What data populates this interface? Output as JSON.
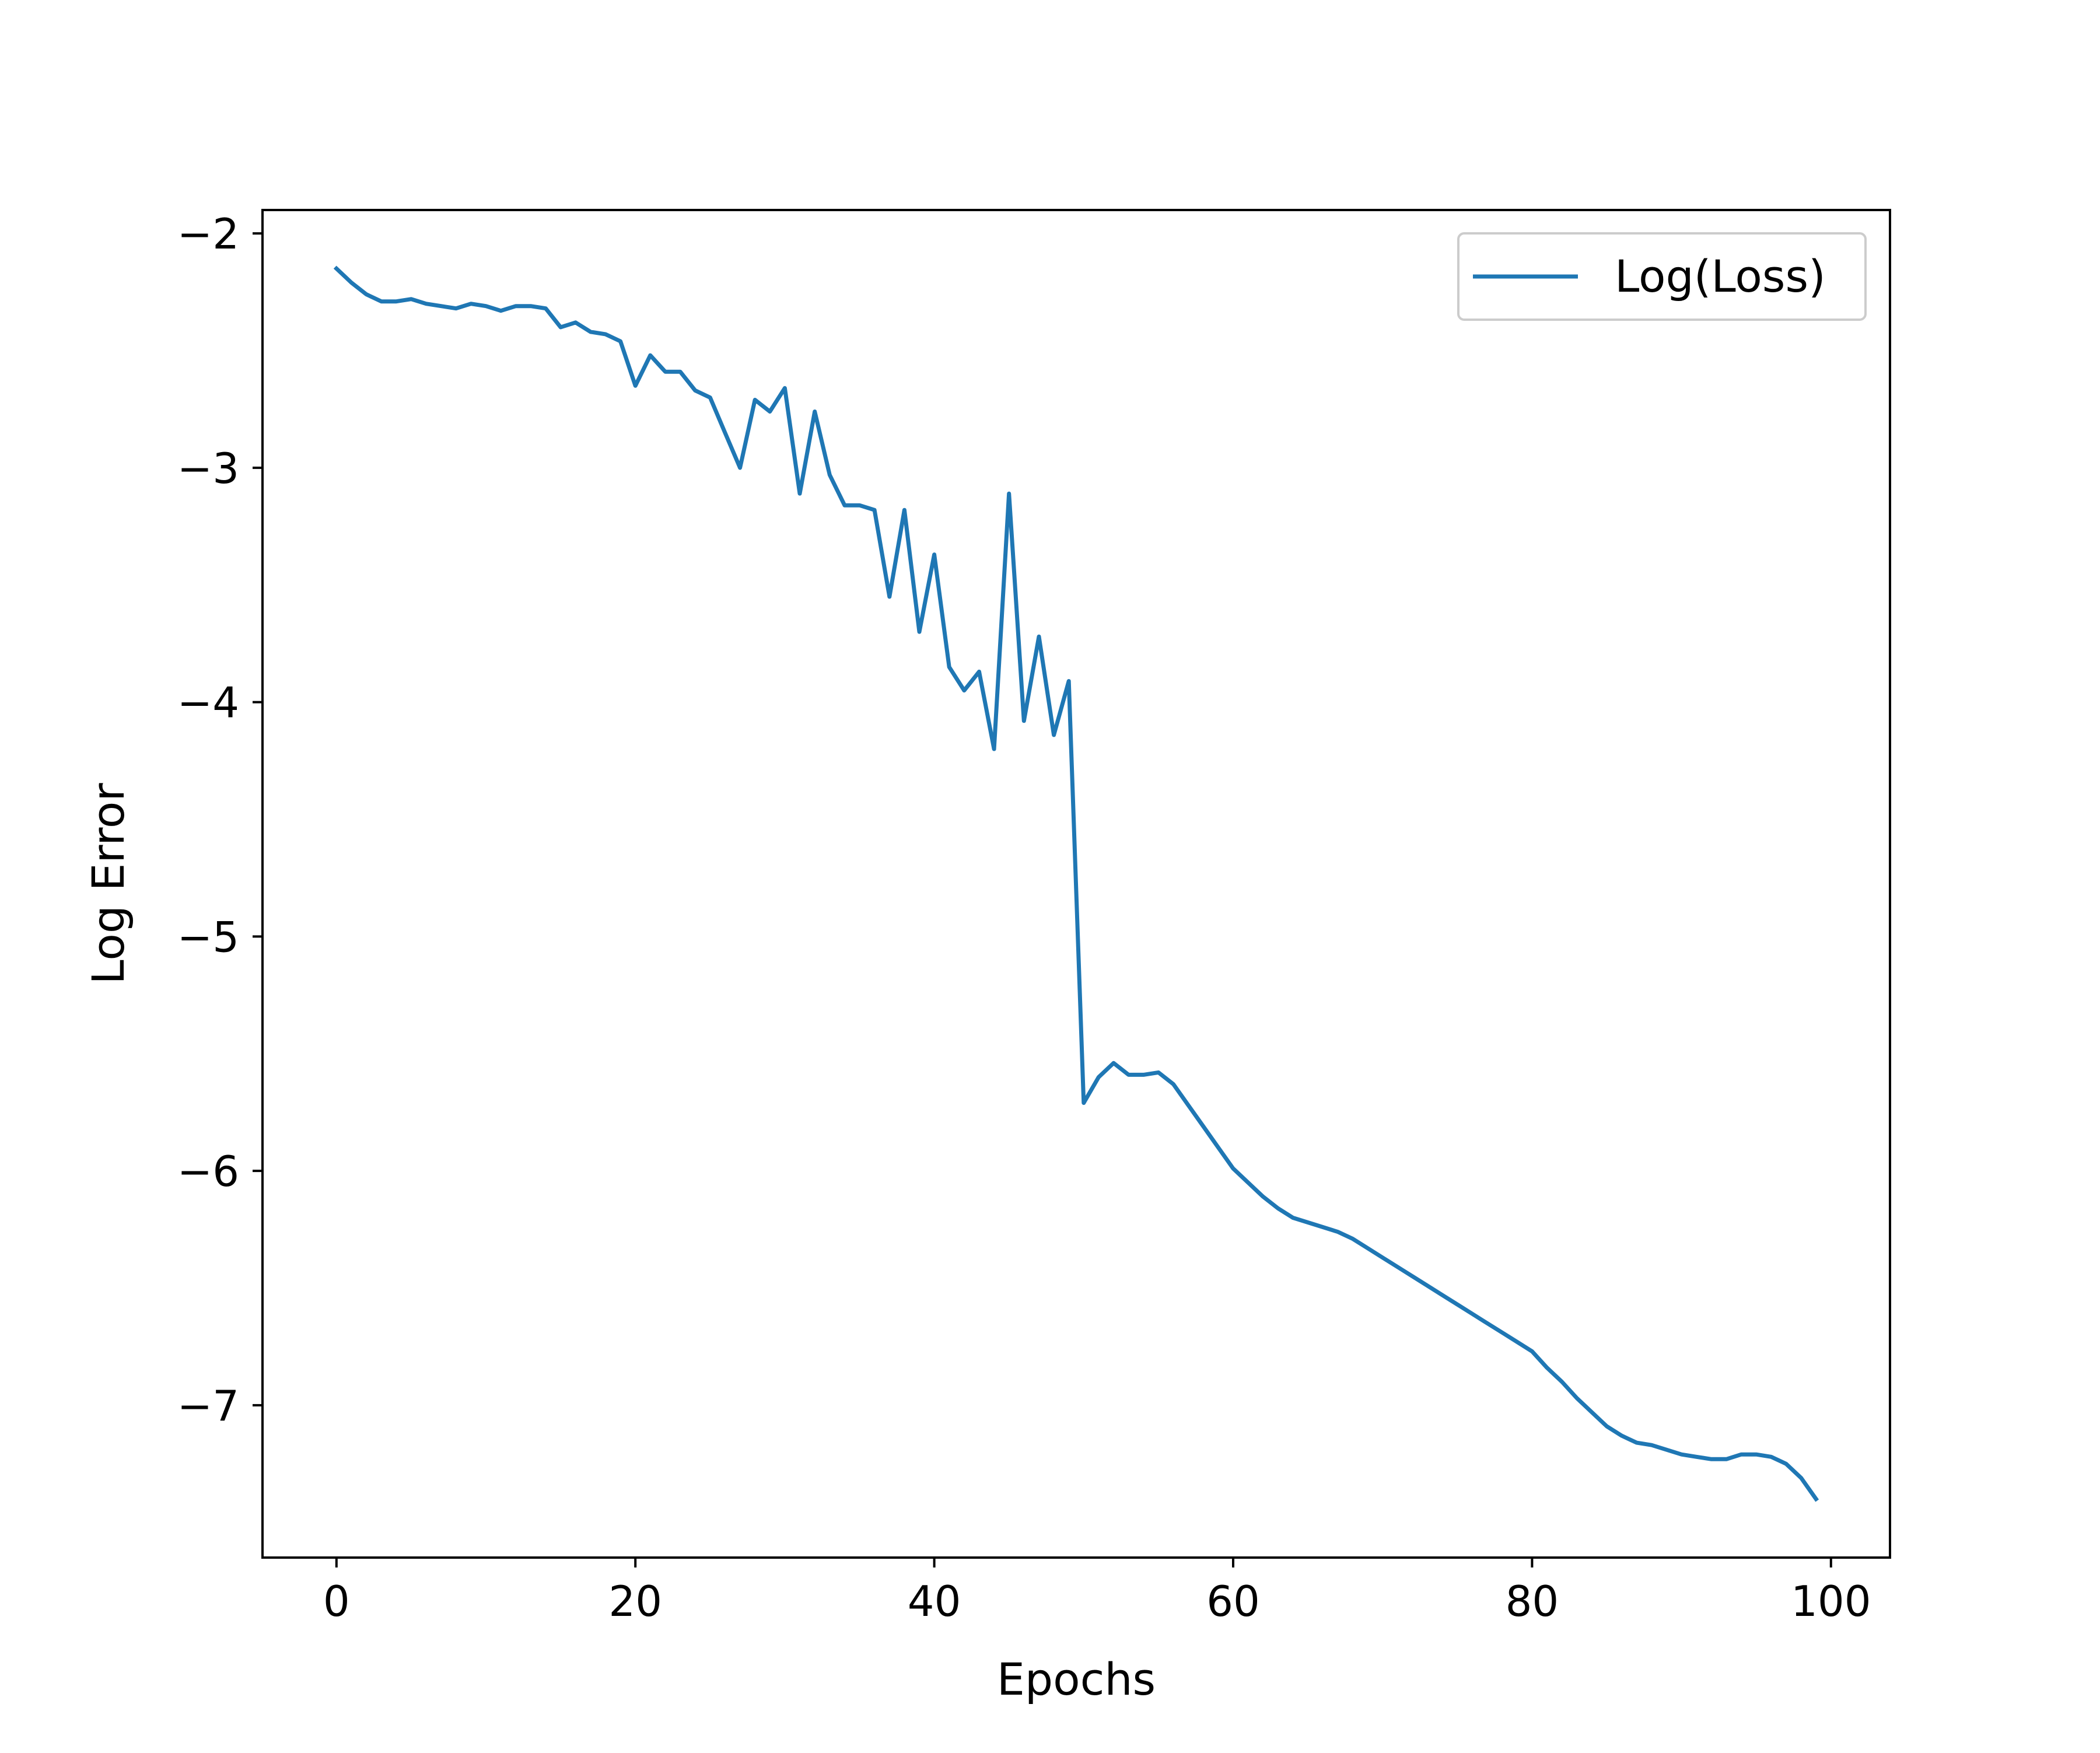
{
  "chart_data": {
    "type": "line",
    "xlabel": "Epochs",
    "ylabel": "Log Error",
    "xlim": [
      -4.95,
      103.95
    ],
    "ylim": [
      -7.65,
      -1.9
    ],
    "x_ticks": [
      0,
      20,
      40,
      60,
      80,
      100
    ],
    "y_ticks": [
      -2,
      -3,
      -4,
      -5,
      -6,
      -7
    ],
    "x_tick_labels": [
      "0",
      "20",
      "40",
      "60",
      "80",
      "100"
    ],
    "y_tick_labels": [
      "−2",
      "−3",
      "−4",
      "−5",
      "−6",
      "−7"
    ],
    "grid": false,
    "legend": {
      "position": "top-right"
    },
    "series": [
      {
        "name": "Log(Loss)",
        "color": "#1f77b4",
        "x": [
          0,
          1,
          2,
          3,
          4,
          5,
          6,
          7,
          8,
          9,
          10,
          11,
          12,
          13,
          14,
          15,
          16,
          17,
          18,
          19,
          20,
          21,
          22,
          23,
          24,
          25,
          26,
          27,
          28,
          29,
          30,
          31,
          32,
          33,
          34,
          35,
          36,
          37,
          38,
          39,
          40,
          41,
          42,
          43,
          44,
          45,
          46,
          47,
          48,
          49,
          50,
          51,
          52,
          53,
          54,
          55,
          56,
          57,
          58,
          59,
          60,
          61,
          62,
          63,
          64,
          65,
          66,
          67,
          68,
          69,
          70,
          71,
          72,
          73,
          74,
          75,
          76,
          77,
          78,
          79,
          80,
          81,
          82,
          83,
          84,
          85,
          86,
          87,
          88,
          89,
          90,
          91,
          92,
          93,
          94,
          95,
          96,
          97,
          98,
          99
        ],
        "y": [
          -2.15,
          -2.21,
          -2.26,
          -2.29,
          -2.29,
          -2.28,
          -2.3,
          -2.31,
          -2.32,
          -2.3,
          -2.31,
          -2.33,
          -2.31,
          -2.31,
          -2.32,
          -2.4,
          -2.38,
          -2.42,
          -2.43,
          -2.46,
          -2.65,
          -2.52,
          -2.59,
          -2.59,
          -2.67,
          -2.7,
          -2.85,
          -3.0,
          -2.71,
          -2.76,
          -2.66,
          -3.11,
          -2.76,
          -3.03,
          -3.16,
          -3.16,
          -3.18,
          -3.55,
          -3.18,
          -3.7,
          -3.37,
          -3.85,
          -3.95,
          -3.87,
          -4.2,
          -3.11,
          -4.08,
          -3.72,
          -4.14,
          -3.91,
          -5.71,
          -5.6,
          -5.54,
          -5.59,
          -5.59,
          -5.58,
          -5.63,
          -5.72,
          -5.81,
          -5.9,
          -5.99,
          -6.05,
          -6.11,
          -6.16,
          -6.2,
          -6.22,
          -6.24,
          -6.26,
          -6.29,
          -6.33,
          -6.37,
          -6.41,
          -6.45,
          -6.49,
          -6.53,
          -6.57,
          -6.61,
          -6.65,
          -6.69,
          -6.73,
          -6.77,
          -6.84,
          -6.9,
          -6.97,
          -7.03,
          -7.09,
          -7.13,
          -7.16,
          -7.17,
          -7.19,
          -7.21,
          -7.22,
          -7.23,
          -7.23,
          -7.21,
          -7.21,
          -7.22,
          -7.25,
          -7.31,
          -7.4
        ]
      }
    ]
  }
}
